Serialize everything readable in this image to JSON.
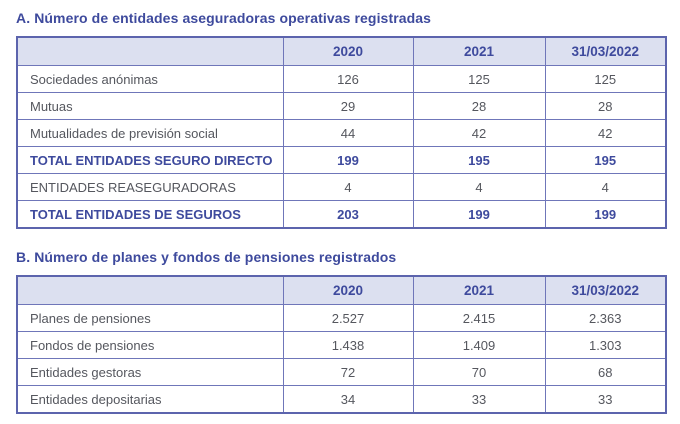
{
  "colors": {
    "accent": "#3e4a9d",
    "header_bg": "#dce0f0",
    "table_border": "#6f76b9",
    "body_text": "#55575e"
  },
  "section_a": {
    "title": "A. Número de entidades aseguradoras operativas registradas",
    "columns": {
      "label": "",
      "y2020": "2020",
      "y2021": "2021",
      "y2022": "31/03/2022"
    },
    "rows": [
      {
        "label": "Sociedades anónimas",
        "values": [
          "126",
          "125",
          "125"
        ],
        "emphasis": false
      },
      {
        "label": "Mutuas",
        "values": [
          "29",
          "28",
          "28"
        ],
        "emphasis": false
      },
      {
        "label": "Mutualidades de previsión social",
        "values": [
          "44",
          "42",
          "42"
        ],
        "emphasis": false
      },
      {
        "label": "TOTAL ENTIDADES SEGURO DIRECTO",
        "values": [
          "199",
          "195",
          "195"
        ],
        "emphasis": true
      },
      {
        "label": "ENTIDADES REASEGURADORAS",
        "values": [
          "4",
          "4",
          "4"
        ],
        "emphasis": false
      },
      {
        "label": "TOTAL ENTIDADES DE SEGUROS",
        "values": [
          "203",
          "199",
          "199"
        ],
        "emphasis": true
      }
    ]
  },
  "section_b": {
    "title": "B. Número de planes y fondos de pensiones registrados",
    "columns": {
      "label": "",
      "y2020": "2020",
      "y2021": "2021",
      "y2022": "31/03/2022"
    },
    "rows": [
      {
        "label": "Planes de pensiones",
        "values": [
          "2.527",
          "2.415",
          "2.363"
        ],
        "emphasis": false
      },
      {
        "label": "Fondos de pensiones",
        "values": [
          "1.438",
          "1.409",
          "1.303"
        ],
        "emphasis": false
      },
      {
        "label": "Entidades gestoras",
        "values": [
          "72",
          "70",
          "68"
        ],
        "emphasis": false
      },
      {
        "label": "Entidades depositarias",
        "values": [
          "34",
          "33",
          "33"
        ],
        "emphasis": false
      }
    ]
  }
}
